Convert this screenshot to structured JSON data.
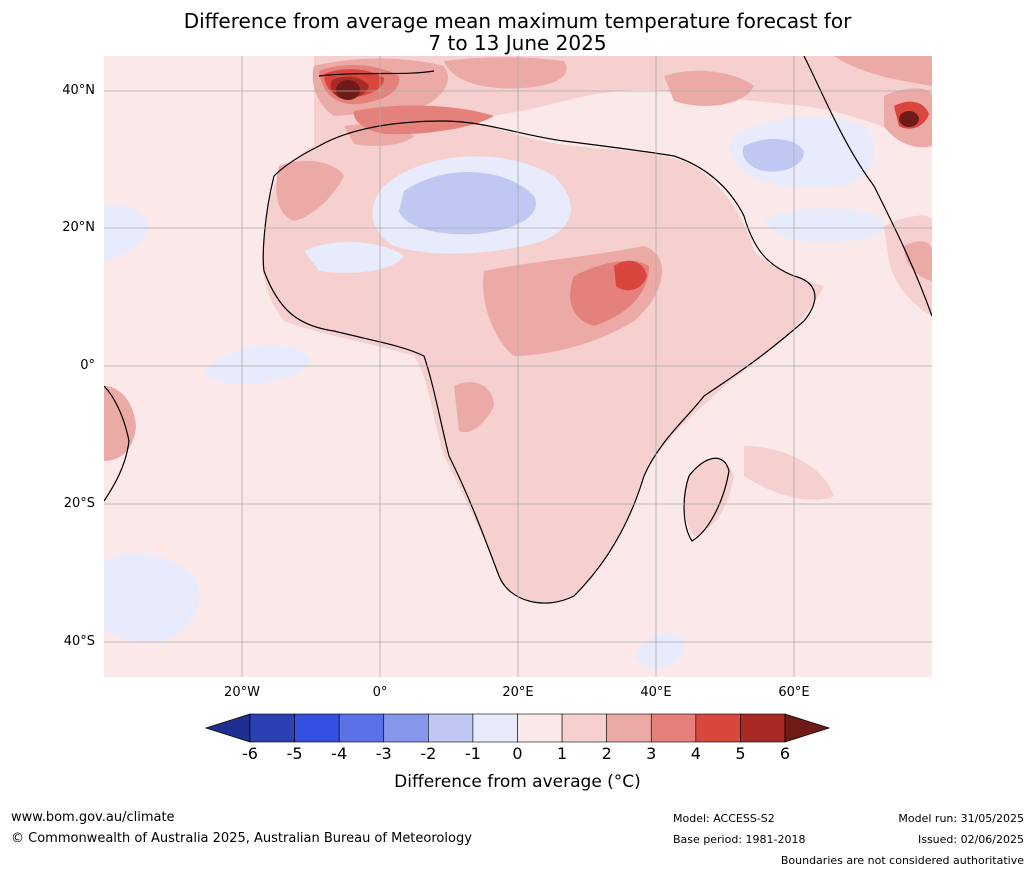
{
  "title_line1": "Difference from average mean maximum temperature forecast for",
  "title_line2": "7 to 13 June 2025",
  "lat_labels": [
    "40°N",
    "20°N",
    "0°",
    "20°S",
    "40°S"
  ],
  "lon_labels": [
    "20°W",
    "0°",
    "20°E",
    "40°E",
    "60°E"
  ],
  "colorbar": {
    "ticks": [
      "-6",
      "-5",
      "-4",
      "-3",
      "-2",
      "-1",
      "0",
      "1",
      "2",
      "3",
      "4",
      "5",
      "6"
    ],
    "colors": [
      "#1f2f8f",
      "#2b40b2",
      "#3350e0",
      "#5a72e6",
      "#8696ea",
      "#bfc8f3",
      "#e8ebfb",
      "#fbe9e9",
      "#f5d0cf",
      "#ecaaa6",
      "#e5817b",
      "#d9463e",
      "#a92a24",
      "#6e1a16"
    ],
    "label": "Difference from average (°C)"
  },
  "footer": {
    "url": "www.bom.gov.au/climate",
    "copyright": "© Commonwealth of Australia 2025, Australian Bureau of Meteorology",
    "model": "Model: ACCESS-S2",
    "base_period": "Base period: 1981-2018",
    "model_run": "Model run: 31/05/2025",
    "issued": "Issued: 02/06/2025",
    "disclaimer": "Boundaries are not considered authoritative"
  }
}
